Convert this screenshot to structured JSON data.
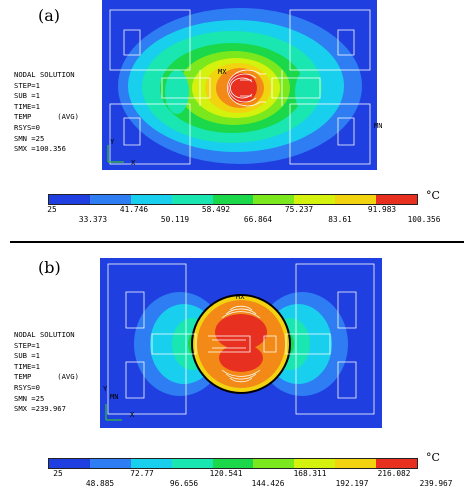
{
  "panels": [
    {
      "label": "(a)",
      "info_lines": [
        "NODAL SOLUTION",
        "",
        "STEP=1",
        "SUB =1",
        "TIME=1",
        "TEMP      (AVG)",
        "RSYS=0",
        "SMN =25",
        "SMX =100.356"
      ],
      "plot_tags": {
        "max": "MX",
        "min": "MN",
        "axis_y": "Y",
        "axis_x": "X"
      },
      "legend": {
        "values": [
          "25",
          "33.373",
          "41.746",
          "50.119",
          "58.492",
          "66.864",
          "75.237",
          "83.61",
          "91.983",
          "100.356"
        ],
        "unit": "°C"
      }
    },
    {
      "label": "(b)",
      "info_lines": [
        "NODAL SOLUTION",
        "",
        "STEP=1",
        "SUB =1",
        "TIME=1",
        "TEMP      (AVG)",
        "RSYS=0",
        "SMN =25",
        "SMX =239.967"
      ],
      "plot_tags": {
        "max": "MX",
        "min": "MN",
        "axis_y": "Y",
        "axis_x": "X"
      },
      "legend": {
        "values": [
          "25",
          "48.885",
          "72.77",
          "96.656",
          "120.541",
          "144.426",
          "168.311",
          "192.197",
          "216.082",
          "239.967"
        ],
        "unit": "°C"
      }
    }
  ],
  "colors": {
    "contour_bands": [
      "#1f3fe0",
      "#2f7df2",
      "#19cfee",
      "#19e6b0",
      "#1ad84a",
      "#7ae81c",
      "#d4f20e",
      "#f2d310",
      "#f38a18",
      "#e83020"
    ],
    "background": "#1f3fe0",
    "outline": "#ffffff"
  }
}
